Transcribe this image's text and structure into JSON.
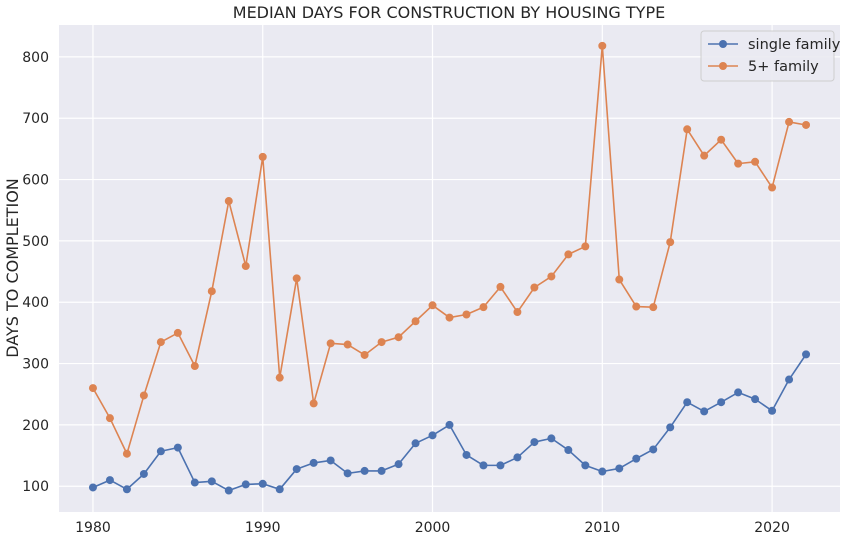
{
  "chart_data": {
    "type": "line",
    "title": "MEDIAN DAYS FOR CONSTRUCTION BY HOUSING TYPE",
    "xlabel": "",
    "ylabel": "DAYS TO COMPLETION",
    "xlim": [
      1978,
      2024
    ],
    "ylim": [
      58,
      852
    ],
    "xticks": [
      1980,
      1990,
      2000,
      2010,
      2020
    ],
    "yticks": [
      100,
      200,
      300,
      400,
      500,
      600,
      700,
      800
    ],
    "grid": true,
    "legend_position": "top-right",
    "x": [
      1980,
      1981,
      1982,
      1983,
      1984,
      1985,
      1986,
      1987,
      1988,
      1989,
      1990,
      1991,
      1992,
      1993,
      1994,
      1995,
      1996,
      1997,
      1998,
      1999,
      2000,
      2001,
      2002,
      2003,
      2004,
      2005,
      2006,
      2007,
      2008,
      2009,
      2010,
      2011,
      2012,
      2013,
      2014,
      2015,
      2016,
      2017,
      2018,
      2019,
      2020,
      2021,
      2022
    ],
    "series": [
      {
        "name": "single family",
        "color": "#4c72b0",
        "values": [
          98,
          110,
          95,
          120,
          157,
          163,
          106,
          108,
          93,
          103,
          104,
          95,
          128,
          138,
          142,
          121,
          125,
          125,
          136,
          170,
          183,
          200,
          151,
          134,
          134,
          147,
          172,
          178,
          159,
          134,
          124,
          129,
          145,
          160,
          196,
          237,
          222,
          237,
          253,
          242,
          223,
          274,
          315
        ]
      },
      {
        "name": "5+ family",
        "color": "#dd8452",
        "values": [
          260,
          211,
          153,
          248,
          335,
          350,
          296,
          418,
          565,
          459,
          637,
          277,
          439,
          235,
          333,
          331,
          314,
          335,
          343,
          369,
          395,
          375,
          380,
          392,
          425,
          384,
          424,
          442,
          478,
          491,
          818,
          437,
          393,
          392,
          498,
          682,
          639,
          665,
          626,
          629,
          587,
          694,
          689
        ]
      }
    ]
  }
}
